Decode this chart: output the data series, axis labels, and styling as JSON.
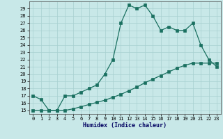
{
  "xlabel": "Humidex (Indice chaleur)",
  "background_color": "#c8e8e8",
  "grid_color": "#a8d0d0",
  "line_color": "#1a7060",
  "xlim": [
    -0.5,
    23.5
  ],
  "ylim": [
    14.5,
    30.0
  ],
  "xticks": [
    0,
    1,
    2,
    3,
    4,
    5,
    6,
    7,
    8,
    9,
    10,
    11,
    12,
    13,
    14,
    15,
    16,
    17,
    18,
    19,
    20,
    21,
    22,
    23
  ],
  "yticks": [
    15,
    16,
    17,
    18,
    19,
    20,
    21,
    22,
    23,
    24,
    25,
    26,
    27,
    28,
    29
  ],
  "series1_x": [
    0,
    1,
    2,
    3,
    4,
    5,
    6,
    7,
    8,
    9,
    10,
    11,
    12,
    13,
    14,
    15,
    16,
    17,
    18,
    19,
    20,
    21,
    22,
    23
  ],
  "series1_y": [
    17,
    16.5,
    15,
    15,
    17,
    17,
    17.5,
    18,
    18.5,
    20,
    22,
    27,
    29.5,
    29,
    29.5,
    28,
    26,
    26.5,
    26,
    26,
    27,
    24,
    22,
    21
  ],
  "series2_x": [
    0,
    1,
    2,
    3,
    4,
    5,
    6,
    7,
    8,
    9,
    10,
    11,
    12,
    13,
    14,
    15,
    16,
    17,
    18,
    19,
    20,
    21,
    22,
    23
  ],
  "series2_y": [
    15,
    15,
    15,
    15,
    15,
    15.2,
    15.5,
    15.8,
    16.1,
    16.4,
    16.8,
    17.2,
    17.7,
    18.2,
    18.8,
    19.3,
    19.8,
    20.3,
    20.8,
    21.2,
    21.5,
    21.5,
    21.5,
    21.5
  ],
  "xlabel_fontsize": 6,
  "xlabel_color": "#000060",
  "tick_fontsize": 5,
  "marker_size": 2.2,
  "linewidth": 0.9
}
